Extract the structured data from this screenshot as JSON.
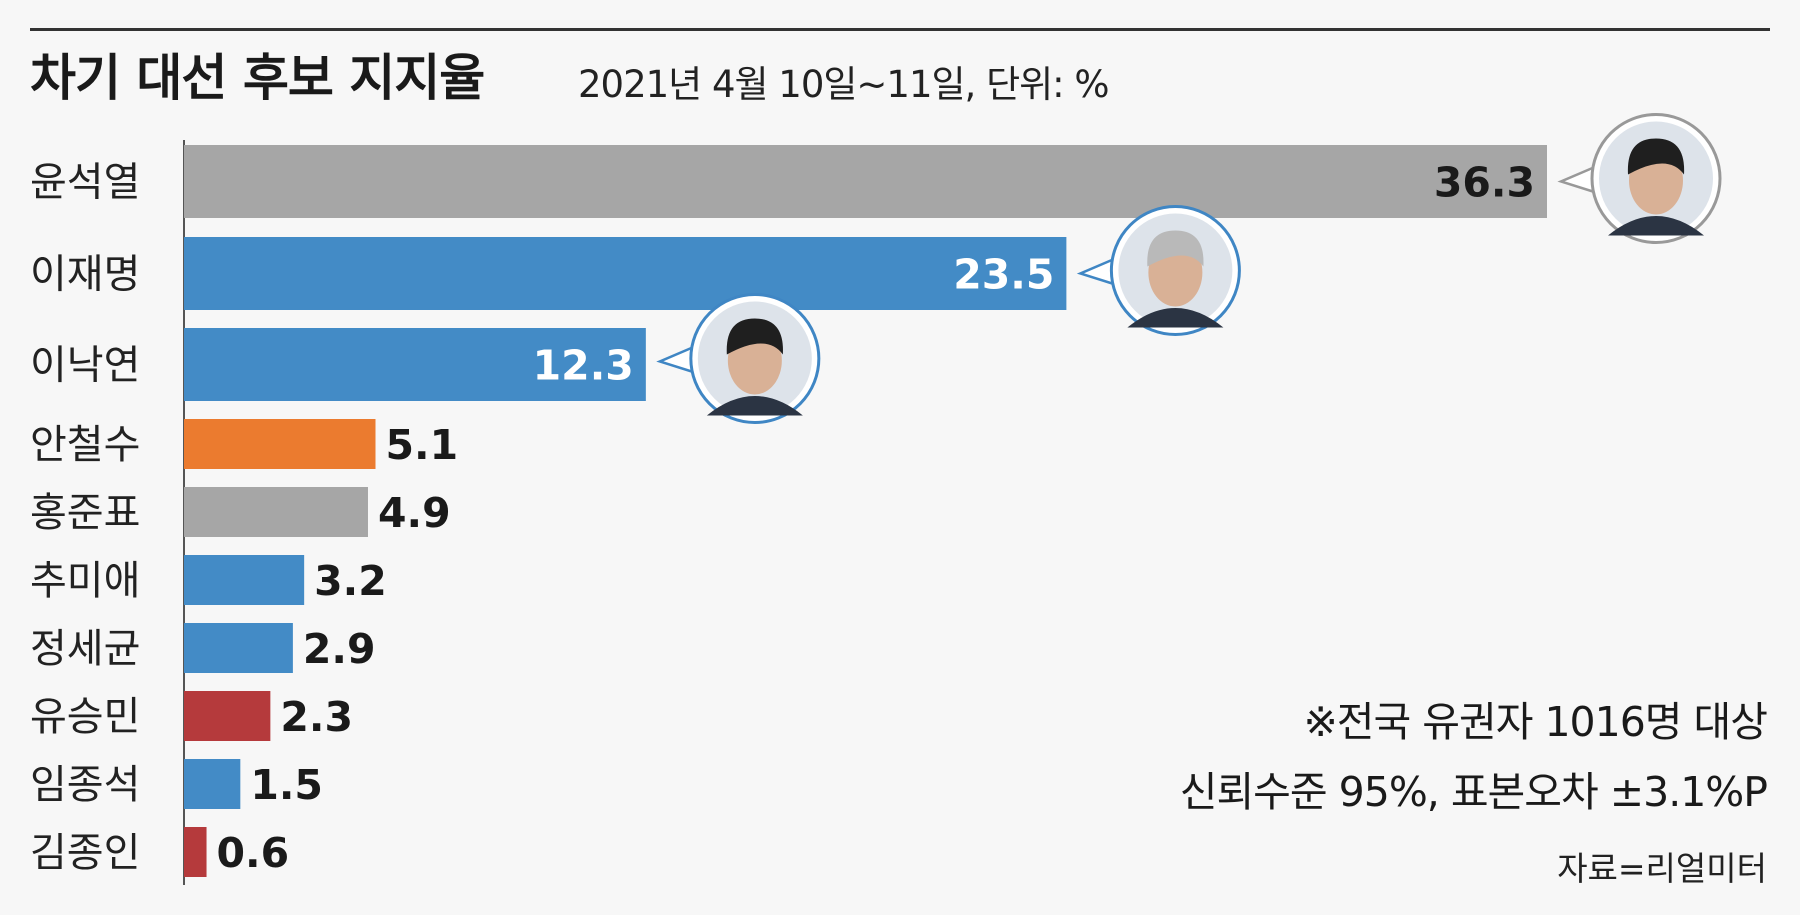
{
  "header": {
    "title": "차기 대선 후보 지지율",
    "subtitle": "2021년 4월 10일~11일, 단위: %"
  },
  "notes": {
    "line1": "※전국 유권자 1016명 대상",
    "line2": "신뢰수준 95%, 표본오차 ±3.1%P",
    "source": "자료=리얼미터"
  },
  "chart_data": {
    "type": "bar",
    "orientation": "horizontal",
    "title": "차기 대선 후보 지지율",
    "subtitle": "2021년 4월 10일~11일, 단위: %",
    "categories": [
      "윤석열",
      "이재명",
      "이낙연",
      "안철수",
      "홍준표",
      "추미애",
      "정세균",
      "유승민",
      "임종석",
      "김종인"
    ],
    "values": [
      36.3,
      23.5,
      12.3,
      5.1,
      4.9,
      3.2,
      2.9,
      2.3,
      1.5,
      0.6
    ],
    "bar_colors": [
      "#a6a6a6",
      "#438bc6",
      "#438bc6",
      "#eb7b2f",
      "#a6a6a6",
      "#438bc6",
      "#438bc6",
      "#b53a3c",
      "#438bc6",
      "#b53a3c"
    ],
    "photo_callouts": [
      "윤석열",
      "이재명",
      "이낙연"
    ],
    "xlim": [
      0,
      36.3
    ],
    "grid": false
  }
}
